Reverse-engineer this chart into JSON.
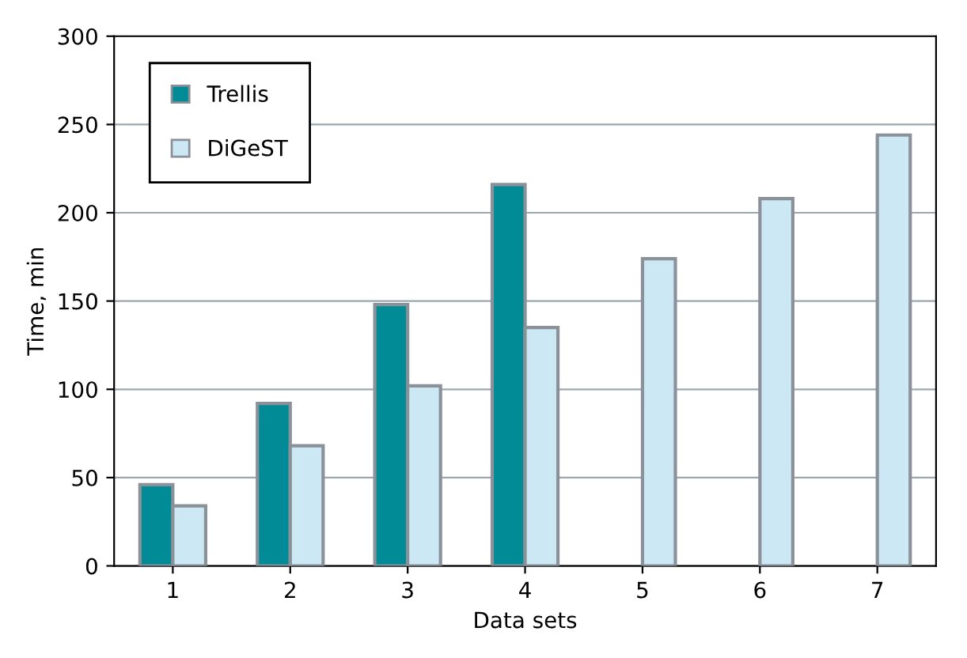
{
  "chart_data": {
    "type": "bar",
    "xlabel": "Data sets",
    "ylabel": "Time, min",
    "categories": [
      "1",
      "2",
      "3",
      "4",
      "5",
      "6",
      "7"
    ],
    "series": [
      {
        "name": "Trellis",
        "color": "#008b96",
        "values": [
          46,
          92,
          148,
          216,
          null,
          null,
          null
        ]
      },
      {
        "name": "DiGeST",
        "color": "#cce8f4",
        "values": [
          34,
          68,
          102,
          135,
          174,
          208,
          244
        ]
      }
    ],
    "ylim": [
      0,
      300
    ],
    "yticks": [
      0,
      50,
      100,
      150,
      200,
      250,
      300
    ],
    "grid": "y",
    "legend": "top left"
  }
}
